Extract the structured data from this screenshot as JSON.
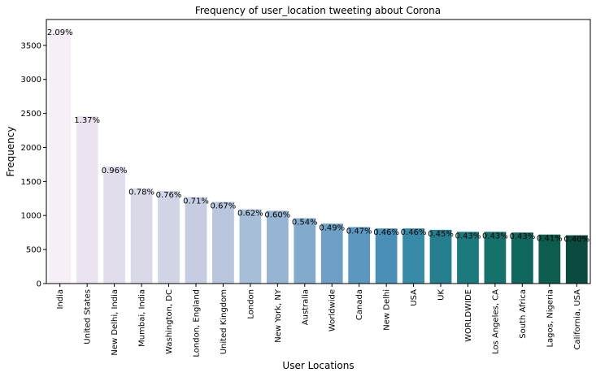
{
  "chart_data": {
    "type": "bar",
    "title": "Frequency of user_location tweeting about Corona",
    "xlabel": "User Locations",
    "ylabel": "Frequency",
    "ylim": [
      0,
      3880
    ],
    "yticks": [
      0,
      500,
      1000,
      1500,
      2000,
      2500,
      3000,
      3500
    ],
    "grid": false,
    "categories": [
      "India",
      "United States",
      "New Delhi, India",
      "Mumbai, India",
      "Washington, DC",
      "London, England",
      "United Kingdom",
      "London",
      "New York, NY",
      "Australia",
      "Worldwide",
      "Canada",
      "New Delhi",
      "USA",
      "UK",
      "WORLDWIDE",
      "Los Angeles, CA",
      "South Africa",
      "Lagos, Nigeria",
      "California, USA"
    ],
    "values": [
      3750,
      2460,
      1720,
      1400,
      1360,
      1270,
      1200,
      1090,
      1070,
      960,
      880,
      830,
      810,
      810,
      790,
      760,
      760,
      750,
      720,
      710
    ],
    "labels": [
      "2.09%",
      "1.37%",
      "0.96%",
      "0.78%",
      "0.76%",
      "0.71%",
      "0.67%",
      "0.62%",
      "0.60%",
      "0.54%",
      "0.49%",
      "0.47%",
      "0.46%",
      "0.46%",
      "0.45%",
      "0.43%",
      "0.43%",
      "0.43%",
      "0.41%",
      "0.40%"
    ],
    "colors": [
      "#f6eff7",
      "#ebe4f0",
      "#e1ddec",
      "#d9d9e8",
      "#d1d5e5",
      "#c6cde2",
      "#b8c6de",
      "#a7bed9",
      "#96b5d3",
      "#82aacc",
      "#6ea0c5",
      "#5b97bf",
      "#4a8fb7",
      "#388aa9",
      "#267f8f",
      "#1a7a7c",
      "#15716c",
      "#10675d",
      "#0d5d4e",
      "#0a4b3f"
    ]
  }
}
